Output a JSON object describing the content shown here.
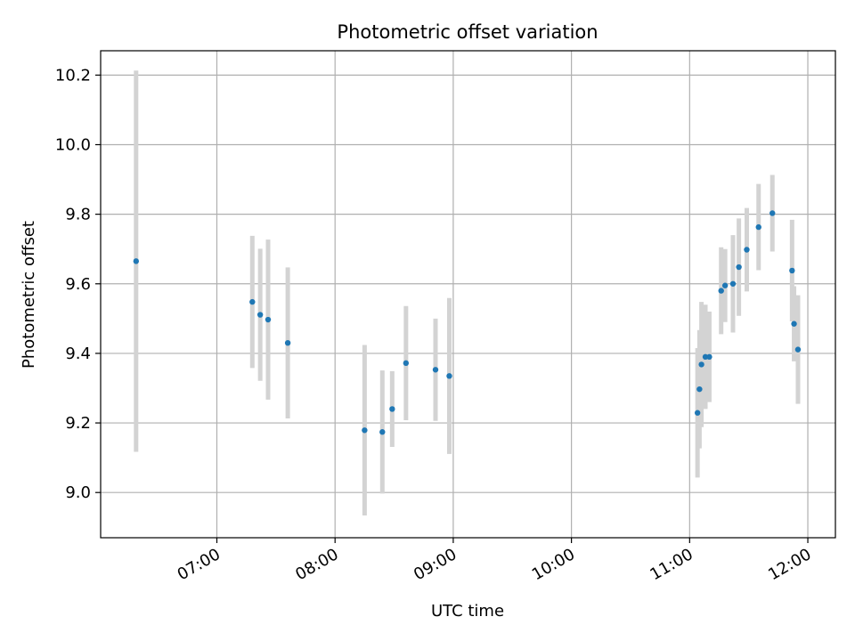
{
  "chart_data": {
    "type": "scatter",
    "title": "Photometric offset variation",
    "xlabel": "UTC time",
    "ylabel": "Photometric offset",
    "xlim": [
      "06:01",
      "12:14"
    ],
    "ylim": [
      8.87,
      10.27
    ],
    "grid": true,
    "x_ticks": [
      "07:00",
      "08:00",
      "09:00",
      "10:00",
      "11:00",
      "12:00"
    ],
    "y_ticks": [
      9.0,
      9.2,
      9.4,
      9.6,
      9.8,
      10.0,
      10.2
    ],
    "y_tick_labels": [
      "9.0",
      "9.2",
      "9.4",
      "9.6",
      "9.8",
      "10.0",
      "10.2"
    ],
    "marker_color": "#1f77b4",
    "errorbar_color": "#d3d3d3",
    "points": [
      {
        "x": "06:19",
        "y": 9.665,
        "err": 0.548
      },
      {
        "x": "07:18",
        "y": 9.548,
        "err": 0.19
      },
      {
        "x": "07:22",
        "y": 9.511,
        "err": 0.19
      },
      {
        "x": "07:26",
        "y": 9.497,
        "err": 0.23
      },
      {
        "x": "07:36",
        "y": 9.43,
        "err": 0.217
      },
      {
        "x": "08:15",
        "y": 9.179,
        "err": 0.245
      },
      {
        "x": "08:24",
        "y": 9.174,
        "err": 0.177
      },
      {
        "x": "08:29",
        "y": 9.24,
        "err": 0.109
      },
      {
        "x": "08:36",
        "y": 9.372,
        "err": 0.164
      },
      {
        "x": "08:51",
        "y": 9.353,
        "err": 0.147
      },
      {
        "x": "08:58",
        "y": 9.335,
        "err": 0.224
      },
      {
        "x": "11:04",
        "y": 9.229,
        "err": 0.186
      },
      {
        "x": "11:05",
        "y": 9.297,
        "err": 0.17
      },
      {
        "x": "11:06",
        "y": 9.368,
        "err": 0.18
      },
      {
        "x": "11:08",
        "y": 9.39,
        "err": 0.15
      },
      {
        "x": "11:10",
        "y": 9.39,
        "err": 0.13
      },
      {
        "x": "11:16",
        "y": 9.58,
        "err": 0.125
      },
      {
        "x": "11:18",
        "y": 9.595,
        "err": 0.105
      },
      {
        "x": "11:22",
        "y": 9.6,
        "err": 0.14
      },
      {
        "x": "11:25",
        "y": 9.648,
        "err": 0.14
      },
      {
        "x": "11:29",
        "y": 9.698,
        "err": 0.12
      },
      {
        "x": "11:35",
        "y": 9.763,
        "err": 0.124
      },
      {
        "x": "11:42",
        "y": 9.803,
        "err": 0.11
      },
      {
        "x": "11:52",
        "y": 9.638,
        "err": 0.146
      },
      {
        "x": "11:53",
        "y": 9.485,
        "err": 0.108
      },
      {
        "x": "11:55",
        "y": 9.411,
        "err": 0.156
      }
    ]
  }
}
